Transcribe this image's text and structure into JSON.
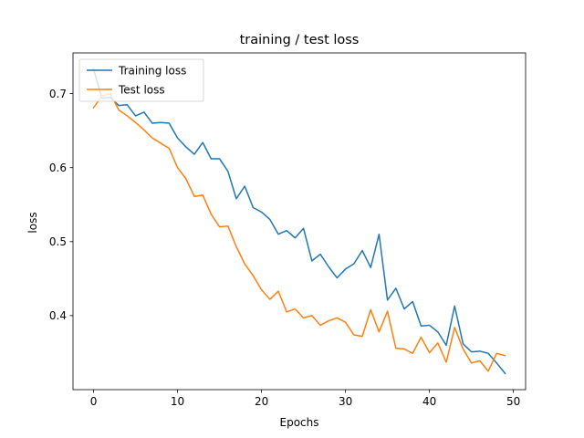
{
  "chart_data": {
    "type": "line",
    "title": "training / test loss",
    "xlabel": "Epochs",
    "ylabel": "loss",
    "xlim": [
      -2.45,
      51.45
    ],
    "ylim": [
      0.3,
      0.755
    ],
    "xticks": [
      0,
      10,
      20,
      30,
      40,
      50
    ],
    "yticks": [
      0.4,
      0.5,
      0.6,
      0.7
    ],
    "grid": false,
    "legend_position": "upper-left",
    "x": [
      0,
      1,
      2,
      3,
      4,
      5,
      6,
      7,
      8,
      9,
      10,
      11,
      12,
      13,
      14,
      15,
      16,
      17,
      18,
      19,
      20,
      21,
      22,
      23,
      24,
      25,
      26,
      27,
      28,
      29,
      30,
      31,
      32,
      33,
      34,
      35,
      36,
      37,
      38,
      39,
      40,
      41,
      42,
      43,
      44,
      45,
      46,
      47,
      48,
      49
    ],
    "series": [
      {
        "name": "Training loss",
        "color": "#1f77b4",
        "values": [
          0.733,
          0.694,
          0.695,
          0.684,
          0.685,
          0.67,
          0.675,
          0.66,
          0.661,
          0.66,
          0.64,
          0.628,
          0.618,
          0.634,
          0.612,
          0.612,
          0.595,
          0.558,
          0.575,
          0.546,
          0.54,
          0.53,
          0.51,
          0.515,
          0.505,
          0.518,
          0.474,
          0.483,
          0.466,
          0.451,
          0.463,
          0.47,
          0.488,
          0.465,
          0.51,
          0.421,
          0.437,
          0.409,
          0.419,
          0.386,
          0.387,
          0.378,
          0.36,
          0.413,
          0.362,
          0.351,
          0.352,
          0.349,
          0.336,
          0.322
        ]
      },
      {
        "name": "Test loss",
        "color": "#ff7f0e",
        "values": [
          0.681,
          0.697,
          0.7,
          0.678,
          0.67,
          0.661,
          0.651,
          0.64,
          0.633,
          0.626,
          0.6,
          0.585,
          0.561,
          0.563,
          0.537,
          0.52,
          0.521,
          0.493,
          0.47,
          0.454,
          0.435,
          0.422,
          0.433,
          0.405,
          0.409,
          0.397,
          0.4,
          0.387,
          0.393,
          0.397,
          0.391,
          0.374,
          0.372,
          0.408,
          0.378,
          0.406,
          0.356,
          0.355,
          0.349,
          0.371,
          0.35,
          0.363,
          0.337,
          0.384,
          0.355,
          0.336,
          0.339,
          0.325,
          0.349,
          0.346
        ]
      }
    ]
  }
}
